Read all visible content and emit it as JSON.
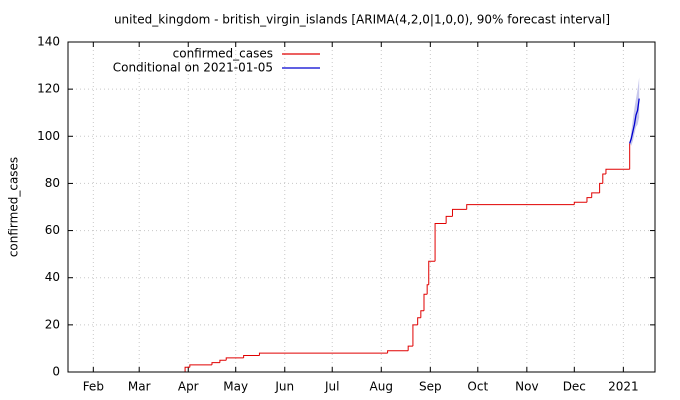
{
  "chart_data": {
    "type": "line",
    "title": "united_kingdom - british_virgin_islands [ARIMA(4,2,0|1,0,0), 90% forecast interval]",
    "y_label": "confirmed_cases",
    "xlim": [
      16,
      387
    ],
    "ylim": [
      0,
      140
    ],
    "xticks": [
      {
        "value": 32,
        "label": "Feb"
      },
      {
        "value": 61,
        "label": "Mar"
      },
      {
        "value": 92,
        "label": "Apr"
      },
      {
        "value": 122,
        "label": "May"
      },
      {
        "value": 153,
        "label": "Jun"
      },
      {
        "value": 183,
        "label": "Jul"
      },
      {
        "value": 214,
        "label": "Aug"
      },
      {
        "value": 245,
        "label": "Sep"
      },
      {
        "value": 275,
        "label": "Oct"
      },
      {
        "value": 306,
        "label": "Nov"
      },
      {
        "value": 336,
        "label": "Dec"
      },
      {
        "value": 367,
        "label": "2021"
      }
    ],
    "yticks": [
      0,
      20,
      40,
      60,
      80,
      100,
      120,
      140
    ],
    "grid": true,
    "legend": "top-left",
    "series": [
      {
        "name": "confirmed_cases",
        "color": "#e00000",
        "step": true,
        "x": [
          86,
          90,
          93,
          107,
          112,
          116,
          127,
          137,
          218,
          231,
          234,
          237,
          239,
          241,
          243,
          244,
          248,
          255,
          259,
          268,
          336,
          344,
          347,
          352,
          354,
          356,
          371
        ],
        "values": [
          0,
          2,
          3,
          4,
          5,
          6,
          7,
          8,
          9,
          11,
          20,
          23,
          26,
          33,
          37,
          47,
          63,
          66,
          69,
          71,
          72,
          74,
          76,
          80,
          84,
          86,
          97
        ]
      },
      {
        "name": "Conditional on 2021-01-05",
        "color": "#0000d0",
        "step": false,
        "x": [
          371,
          372,
          373,
          374,
          375,
          376,
          377
        ],
        "values": [
          97,
          99,
          102,
          105,
          109,
          111,
          116
        ],
        "interval": {
          "color": "#c8c8ec",
          "lower": [
            97,
            96,
            98,
            101,
            104,
            105,
            108
          ],
          "upper": [
            97,
            102,
            107,
            112,
            116,
            120,
            125
          ]
        }
      }
    ]
  }
}
